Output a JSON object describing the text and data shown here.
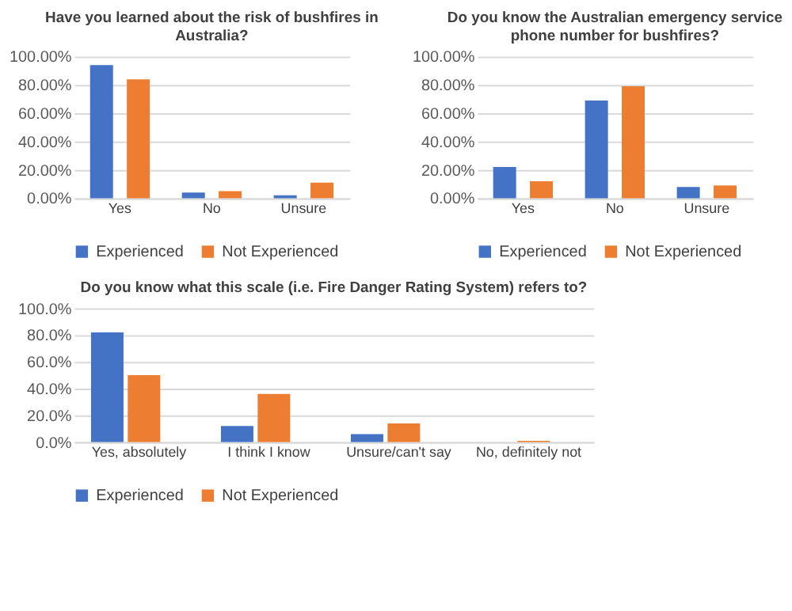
{
  "chart_data": [
    {
      "type": "bar",
      "title": "Have you learned about the risk of bushfires in Australia?",
      "categories": [
        "Yes",
        "No",
        "Unsure"
      ],
      "series": [
        {
          "name": "Experienced",
          "color": "#4472c4",
          "values": [
            94,
            4,
            2
          ]
        },
        {
          "name": "Not Experienced",
          "color": "#ed7d31",
          "values": [
            84,
            5,
            11
          ]
        }
      ],
      "ylim": [
        0,
        100
      ],
      "yticks": [
        {
          "value": 0,
          "label": "0.00%"
        },
        {
          "value": 20,
          "label": "20.00%"
        },
        {
          "value": 40,
          "label": "40.00%"
        },
        {
          "value": 60,
          "label": "60.00%"
        },
        {
          "value": 80,
          "label": "80.00%"
        },
        {
          "value": 100,
          "label": "100.00%"
        }
      ],
      "grid": "y",
      "legend": "bottom"
    },
    {
      "type": "bar",
      "title": "Do you know the Australian emergency service phone number for bushfires?",
      "categories": [
        "Yes",
        "No",
        "Unsure"
      ],
      "series": [
        {
          "name": "Experienced",
          "color": "#4472c4",
          "values": [
            22,
            69,
            8
          ]
        },
        {
          "name": "Not Experienced",
          "color": "#ed7d31",
          "values": [
            12,
            79,
            9
          ]
        }
      ],
      "ylim": [
        0,
        100
      ],
      "yticks": [
        {
          "value": 0,
          "label": "0.00%"
        },
        {
          "value": 20,
          "label": "20.00%"
        },
        {
          "value": 40,
          "label": "40.00%"
        },
        {
          "value": 60,
          "label": "60.00%"
        },
        {
          "value": 80,
          "label": "80.00%"
        },
        {
          "value": 100,
          "label": "100.00%"
        }
      ],
      "grid": "y",
      "legend": "bottom"
    },
    {
      "type": "bar",
      "title": "Do you know what this scale (i.e. Fire Danger Rating System) refers to?",
      "categories": [
        "Yes, absolutely",
        "I think I know",
        "Unsure/can't say",
        "No, definitely not"
      ],
      "series": [
        {
          "name": "Experienced",
          "color": "#4472c4",
          "values": [
            82,
            12,
            6,
            0
          ]
        },
        {
          "name": "Not Experienced",
          "color": "#ed7d31",
          "values": [
            50,
            36,
            14,
            1
          ]
        }
      ],
      "ylim": [
        0,
        100
      ],
      "yticks": [
        {
          "value": 0,
          "label": "0.0%"
        },
        {
          "value": 20,
          "label": "20.0%"
        },
        {
          "value": 40,
          "label": "40.0%"
        },
        {
          "value": 60,
          "label": "60.0%"
        },
        {
          "value": 80,
          "label": "80.0%"
        },
        {
          "value": 100,
          "label": "100.0%"
        }
      ],
      "grid": "y",
      "legend": "bottom"
    }
  ]
}
